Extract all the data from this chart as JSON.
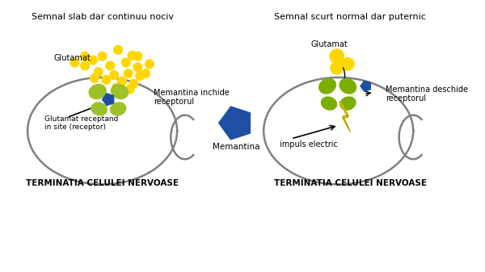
{
  "bg_color": "#ffffff",
  "left_title": "Semnal slab dar continuu nociv",
  "right_title": "Semnal scurt normal dar puternic",
  "left_label": "TERMINATIA CELULEI NERVOASE",
  "right_label": "TERMINATIA CELULEI NERVOASE",
  "glutamat_color": "#FFD700",
  "receptor_color_left": "#9DC12A",
  "receptor_color_right": "#7AAF00",
  "memantina_color": "#1E4FA5",
  "lightning_color": "#FFD700",
  "cell_outline_color": "#808080",
  "text_color": "#000000",
  "label_left_glutamat": "Glutamat",
  "label_left_receptor": "Glutamat receptand\nin site (receptor)",
  "label_left_memantina": "Memantina inchide\nreceptorul",
  "label_right_glutamat": "Glutamat",
  "label_right_memantina": "Memantina deschide\nreceptorul",
  "label_center_memantina": "Memantina",
  "label_right_electric": "impuls electric"
}
